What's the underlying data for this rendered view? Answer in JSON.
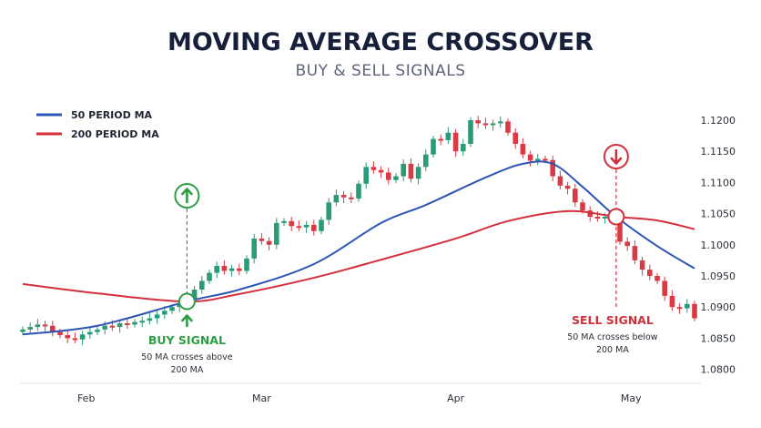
{
  "chart_data": {
    "type": "candlestick",
    "title": "MOVING AVERAGE CROSSOVER",
    "subtitle": "BUY & SELL SIGNALS",
    "legend": [
      {
        "name": "50 PERIOD MA",
        "color": "#2d55b5"
      },
      {
        "name": "200 PERIOD MA",
        "color": "#d42f3a"
      }
    ],
    "legend_position": "top-left",
    "grid": false,
    "ylim": [
      1.08,
      1.12
    ],
    "y_ticks": [
      "1.1200",
      "1.1150",
      "1.1100",
      "1.1050",
      "1.1000",
      "1.0950",
      "1.0900",
      "1.0850",
      "1.0800"
    ],
    "x_ticks": [
      {
        "label": "Feb",
        "index": 8.5
      },
      {
        "label": "Mar",
        "index": 32
      },
      {
        "label": "Apr",
        "index": 58
      },
      {
        "label": "May",
        "index": 81.5
      }
    ],
    "candle_colors": {
      "up": "#2b9a78",
      "down": "#d93a44"
    },
    "closes": [
      1.0864,
      1.0868,
      1.0872,
      1.087,
      1.086,
      1.0855,
      1.085,
      1.0848,
      1.0856,
      1.086,
      1.0864,
      1.087,
      1.0868,
      1.0874,
      1.0872,
      1.0876,
      1.0878,
      1.0882,
      1.0888,
      1.0894,
      1.09,
      1.0906,
      1.0912,
      1.0928,
      1.0942,
      1.0955,
      1.0966,
      1.0958,
      1.0962,
      1.0958,
      1.0978,
      1.101,
      1.1006,
      1.1,
      1.1035,
      1.1038,
      1.103,
      1.1028,
      1.1032,
      1.1022,
      1.104,
      1.1068,
      1.108,
      1.1076,
      1.1074,
      1.1098,
      1.1125,
      1.112,
      1.1116,
      1.1104,
      1.111,
      1.113,
      1.1106,
      1.1125,
      1.1145,
      1.117,
      1.1168,
      1.118,
      1.115,
      1.1162,
      1.12,
      1.1195,
      1.1192,
      1.1195,
      1.1198,
      1.118,
      1.1162,
      1.1145,
      1.1135,
      1.1138,
      1.1136,
      1.111,
      1.1095,
      1.109,
      1.1068,
      1.1055,
      1.1045,
      1.1043,
      1.1045,
      1.1045,
      1.1005,
      1.0998,
      1.0975,
      1.096,
      1.095,
      1.0942,
      1.0918,
      1.09,
      1.0898,
      1.0905,
      1.0882
    ],
    "series": [
      {
        "name": "50 PERIOD MA",
        "points": [
          [
            0,
            1.0856
          ],
          [
            10,
            1.087
          ],
          [
            22,
            1.0909
          ],
          [
            29,
            1.0928
          ],
          [
            39,
            1.0969
          ],
          [
            48,
            1.1035
          ],
          [
            54,
            1.1064
          ],
          [
            62,
            1.1108
          ],
          [
            67,
            1.113
          ],
          [
            71,
            1.113
          ],
          [
            75,
            1.1093
          ],
          [
            79.5,
            1.1045
          ],
          [
            85,
            1.0998
          ],
          [
            90,
            1.0962
          ]
        ]
      },
      {
        "name": "200 PERIOD MA",
        "points": [
          [
            0,
            1.0937
          ],
          [
            10,
            1.0922
          ],
          [
            22,
            1.0909
          ],
          [
            29,
            1.0921
          ],
          [
            39,
            1.0947
          ],
          [
            48,
            1.0976
          ],
          [
            58,
            1.101
          ],
          [
            65,
            1.1038
          ],
          [
            73,
            1.1054
          ],
          [
            79.5,
            1.1045
          ],
          [
            85,
            1.1039
          ],
          [
            90,
            1.1025
          ]
        ]
      }
    ],
    "annotations": {
      "buy": {
        "label": "BUY SIGNAL",
        "line1": "50 MA crosses above",
        "line2": "200 MA",
        "index": 22,
        "price": 1.0909,
        "color": "#2e9e45"
      },
      "sell": {
        "label": "SELL SIGNAL",
        "line1": "50 MA crosses below",
        "line2": "200 MA",
        "index": 79.5,
        "price": 1.1045,
        "color": "#d0303c"
      }
    }
  }
}
